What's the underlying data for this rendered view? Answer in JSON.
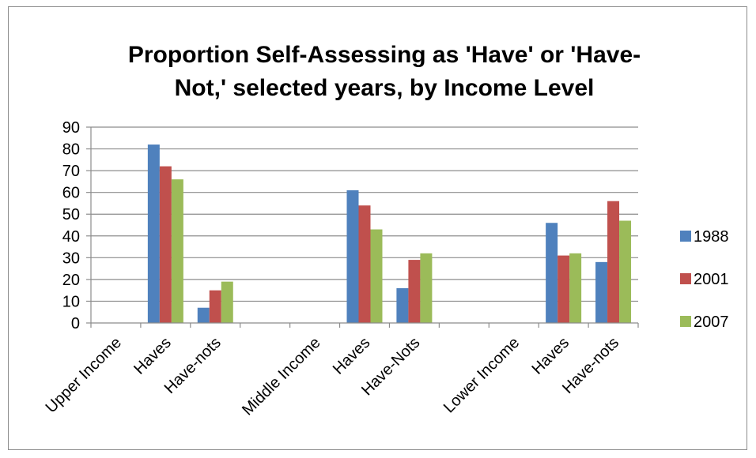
{
  "chart_data": {
    "type": "bar",
    "title_lines": [
      "Proportion Self-Assessing as 'Have' or 'Have-",
      "Not,' selected years, by Income Level"
    ],
    "xlabel": "",
    "ylabel": "",
    "ylim": [
      0,
      90
    ],
    "yticks": [
      0,
      10,
      20,
      30,
      40,
      50,
      60,
      70,
      80,
      90
    ],
    "grid": true,
    "legend_position": "right",
    "categories": [
      "Upper Income",
      "Haves",
      "Have-nots",
      "",
      "Middle Income",
      "Haves",
      "Have-Nots",
      "",
      "Lower Income",
      "Haves",
      "Have-nots"
    ],
    "series": [
      {
        "name": "1988",
        "color": "#4f81bd",
        "values": [
          null,
          82,
          7,
          null,
          null,
          61,
          16,
          null,
          null,
          46,
          28
        ]
      },
      {
        "name": "2001",
        "color": "#c0504d",
        "values": [
          null,
          72,
          15,
          null,
          null,
          54,
          29,
          null,
          null,
          31,
          56
        ]
      },
      {
        "name": "2007",
        "color": "#9bbb59",
        "values": [
          null,
          66,
          19,
          null,
          null,
          43,
          32,
          null,
          null,
          32,
          47
        ]
      }
    ]
  }
}
